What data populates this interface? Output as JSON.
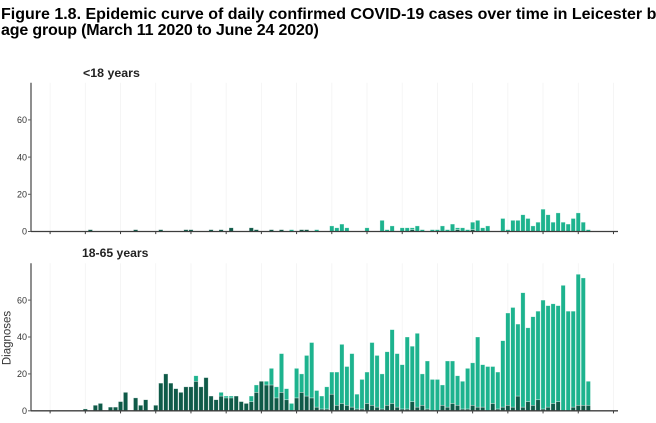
{
  "figure": {
    "title_line1": "Figure 1.8. Epidemic curve of daily confirmed COVID-19 cases over time in Leicester b",
    "title_line2": "age group (March 11 2020 to June 24 2020)"
  },
  "chart_data": [
    {
      "type": "bar",
      "stacked": true,
      "title": "<18 years",
      "xlabel": "",
      "ylabel": "",
      "ylim": [
        0,
        80
      ],
      "yticks": [
        0,
        20,
        40,
        60
      ],
      "xlim": [
        -5.8,
        110.9
      ],
      "x_ticks": [
        -2,
        5,
        12,
        19,
        26,
        33,
        40,
        47,
        54,
        61,
        68,
        75,
        82,
        89,
        96,
        103,
        110
      ],
      "grid": false,
      "x": [
        0,
        1,
        2,
        3,
        4,
        5,
        6,
        7,
        8,
        9,
        10,
        11,
        12,
        13,
        14,
        15,
        16,
        17,
        18,
        19,
        20,
        21,
        22,
        23,
        24,
        25,
        26,
        27,
        28,
        29,
        30,
        31,
        32,
        33,
        34,
        35,
        36,
        37,
        38,
        39,
        40,
        41,
        42,
        43,
        44,
        45,
        46,
        47,
        48,
        49,
        50,
        51,
        52,
        53,
        54,
        55,
        56,
        57,
        58,
        59,
        60,
        61,
        62,
        63,
        64,
        65,
        66,
        67,
        68,
        69,
        70,
        71,
        72,
        73,
        74,
        75,
        76,
        77,
        78,
        79,
        80,
        81,
        82,
        83,
        84,
        85,
        86,
        87,
        88,
        89,
        90,
        91,
        92,
        93,
        94,
        95,
        96,
        97,
        98,
        99,
        100,
        101,
        102,
        103,
        104,
        105
      ],
      "series": [
        {
          "color": "#0f5a48",
          "values": [
            0,
            0,
            0,
            0,
            0,
            0,
            1,
            0,
            0,
            0,
            0,
            0,
            0,
            0,
            0,
            1,
            0,
            0,
            0,
            0,
            1,
            0,
            0,
            0,
            0,
            1,
            1,
            0,
            0,
            0,
            1,
            0,
            1,
            0,
            2,
            0,
            0,
            0,
            2,
            1,
            0,
            0,
            1,
            0,
            1,
            0,
            0,
            0,
            1,
            1,
            0,
            0,
            0,
            0,
            0,
            0,
            0,
            0,
            0,
            0,
            0,
            0,
            0,
            0,
            0,
            0,
            0,
            0,
            0,
            0,
            1,
            0,
            0,
            0,
            0,
            0,
            0,
            0,
            0,
            1,
            0,
            0,
            1,
            0,
            0,
            0,
            0,
            0,
            0,
            0,
            0,
            0,
            0,
            0,
            0,
            0,
            0,
            0,
            0,
            0,
            0,
            0,
            0,
            0,
            0,
            0
          ]
        },
        {
          "color": "#1db38e",
          "values": [
            0,
            0,
            0,
            0,
            0,
            0,
            0,
            0,
            0,
            0,
            0,
            0,
            0,
            0,
            0,
            0,
            0,
            0,
            0,
            0,
            0,
            0,
            0,
            0,
            0,
            0,
            0,
            0,
            0,
            0,
            0,
            0,
            0,
            0,
            0,
            0,
            0,
            0,
            0,
            0,
            0,
            0,
            0,
            0,
            0,
            0,
            1,
            0,
            0,
            0,
            0,
            1,
            0,
            0,
            3,
            2,
            4,
            2,
            0,
            0,
            0,
            2,
            0,
            0,
            6,
            1,
            3,
            0,
            2,
            2,
            1,
            3,
            1,
            0,
            1,
            1,
            3,
            1,
            4,
            1,
            2,
            1,
            4,
            6,
            2,
            3,
            0,
            0,
            7,
            1,
            6,
            6,
            9,
            7,
            3,
            5,
            12,
            9,
            5,
            10,
            5,
            4,
            7,
            10,
            5,
            1
          ]
        }
      ]
    },
    {
      "type": "bar",
      "stacked": true,
      "title": "18-65 years",
      "xlabel": "",
      "ylabel": "Diagnoses",
      "ylim": [
        0,
        80
      ],
      "yticks": [
        0,
        20,
        40,
        60
      ],
      "xlim": [
        -5.8,
        110.9
      ],
      "x_ticks": [
        -2,
        5,
        12,
        19,
        26,
        33,
        40,
        47,
        54,
        61,
        68,
        75,
        82,
        89,
        96,
        103,
        110
      ],
      "grid": false,
      "x": [
        0,
        1,
        2,
        3,
        4,
        5,
        6,
        7,
        8,
        9,
        10,
        11,
        12,
        13,
        14,
        15,
        16,
        17,
        18,
        19,
        20,
        21,
        22,
        23,
        24,
        25,
        26,
        27,
        28,
        29,
        30,
        31,
        32,
        33,
        34,
        35,
        36,
        37,
        38,
        39,
        40,
        41,
        42,
        43,
        44,
        45,
        46,
        47,
        48,
        49,
        50,
        51,
        52,
        53,
        54,
        55,
        56,
        57,
        58,
        59,
        60,
        61,
        62,
        63,
        64,
        65,
        66,
        67,
        68,
        69,
        70,
        71,
        72,
        73,
        74,
        75,
        76,
        77,
        78,
        79,
        80,
        81,
        82,
        83,
        84,
        85,
        86,
        87,
        88,
        89,
        90,
        91,
        92,
        93,
        94,
        95,
        96,
        97,
        98,
        99,
        100,
        101,
        102,
        103,
        104,
        105
      ],
      "series": [
        {
          "color": "#0f5a48",
          "values": [
            0,
            0,
            0,
            0,
            0,
            1,
            0,
            3,
            4,
            0,
            2,
            2,
            5,
            10,
            0,
            7,
            3,
            6,
            0,
            3,
            15,
            20,
            15,
            12,
            10,
            13,
            13,
            16,
            13,
            18,
            8,
            6,
            8,
            7,
            7,
            8,
            5,
            4,
            5,
            10,
            16,
            14,
            14,
            7,
            10,
            6,
            0,
            7,
            10,
            8,
            7,
            2,
            1,
            1,
            9,
            3,
            4,
            3,
            2,
            1,
            1,
            4,
            3,
            2,
            1,
            3,
            4,
            2,
            1,
            1,
            5,
            2,
            3,
            1,
            0,
            0,
            3,
            2,
            4,
            3,
            1,
            1,
            3,
            2,
            2,
            0,
            4,
            1,
            2,
            3,
            2,
            8,
            2,
            5,
            3,
            6,
            1,
            2,
            4,
            5,
            0,
            0,
            2,
            3,
            3,
            3
          ]
        },
        {
          "color": "#1db38e",
          "values": [
            0,
            0,
            0,
            0,
            0,
            0,
            0,
            0,
            0,
            0,
            0,
            0,
            0,
            0,
            0,
            0,
            0,
            0,
            0,
            0,
            0,
            0,
            0,
            0,
            0,
            0,
            0,
            3,
            0,
            0,
            0,
            0,
            2,
            1,
            1,
            0,
            0,
            0,
            3,
            4,
            0,
            2,
            9,
            6,
            21,
            6,
            4,
            16,
            10,
            22,
            30,
            9,
            7,
            12,
            12,
            18,
            32,
            21,
            29,
            8,
            16,
            17,
            34,
            28,
            19,
            29,
            40,
            29,
            24,
            39,
            30,
            40,
            17,
            26,
            17,
            17,
            11,
            25,
            23,
            16,
            15,
            22,
            23,
            38,
            23,
            24,
            20,
            20,
            36,
            50,
            54,
            39,
            62,
            40,
            48,
            48,
            59,
            55,
            54,
            52,
            68,
            54,
            52,
            71,
            69,
            13
          ]
        }
      ]
    }
  ]
}
